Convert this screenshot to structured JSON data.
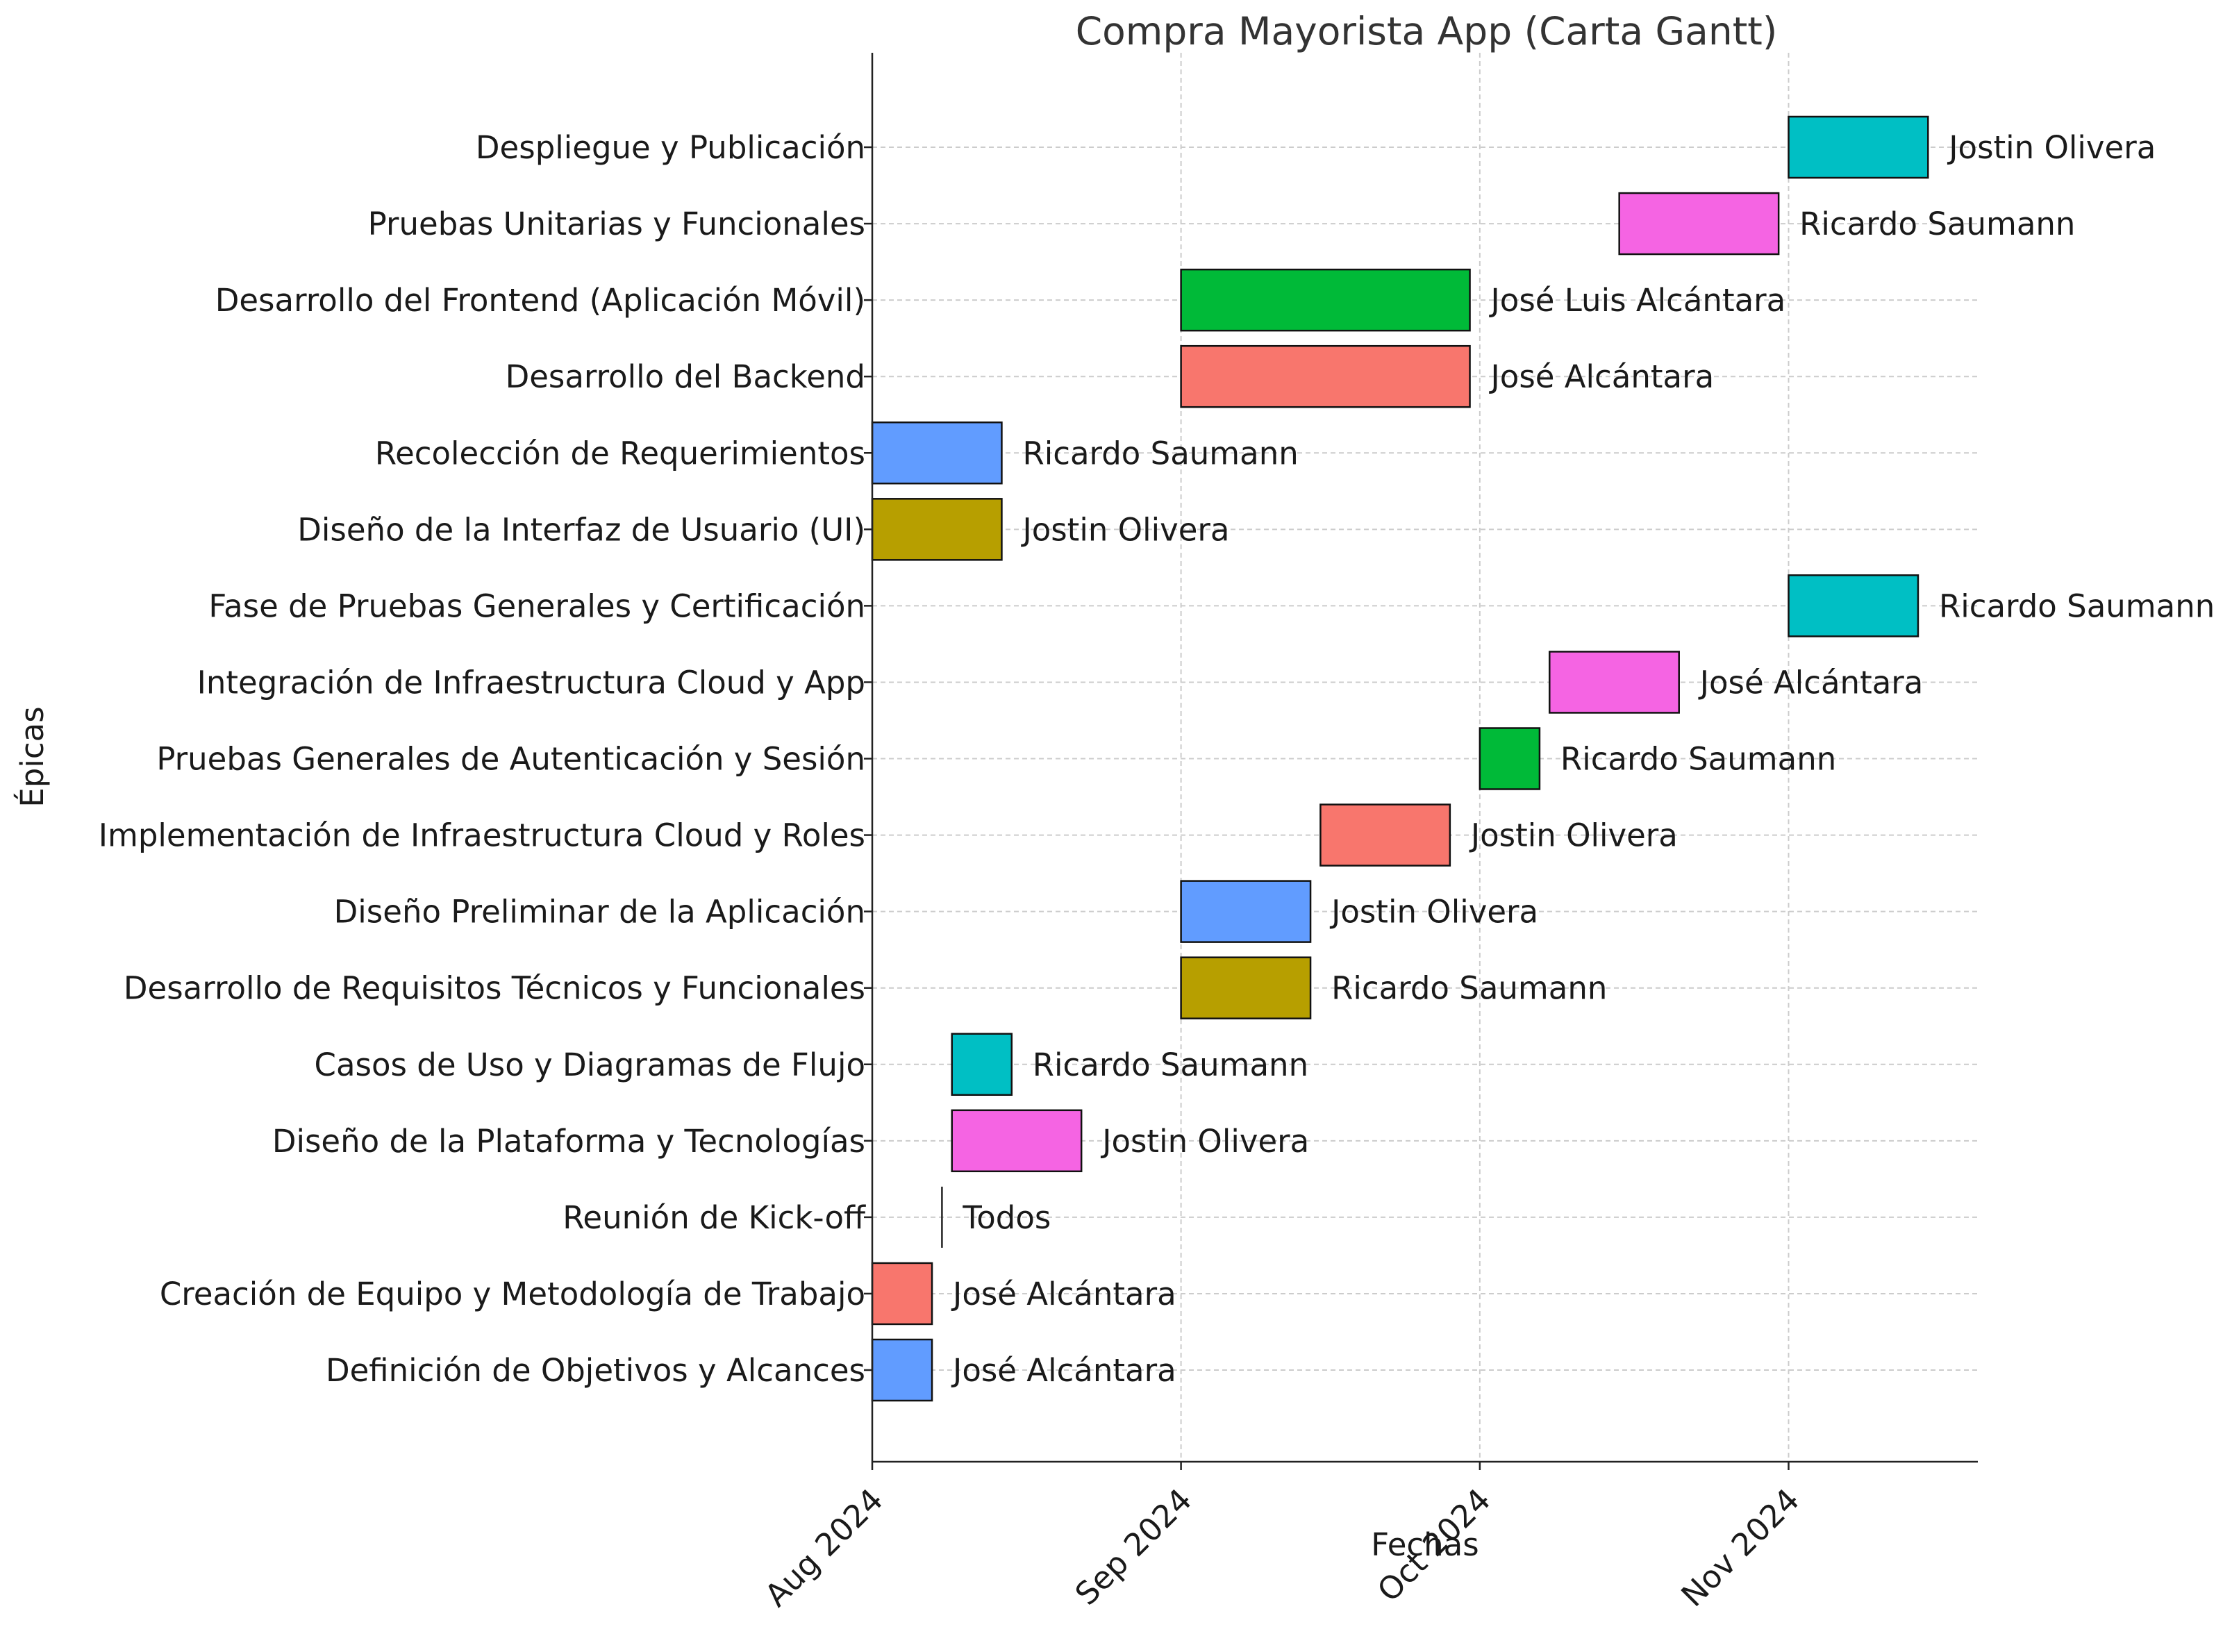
{
  "chart_data": {
    "type": "gantt",
    "title": "Compra Mayorista App (Carta Gantt)",
    "xlabel": "Fechas",
    "ylabel": "Épicas",
    "xlim": [
      "2024-08-01",
      "2024-11-20"
    ],
    "x_ticks": [
      {
        "date": "2024-08-01",
        "label": "Aug 2024"
      },
      {
        "date": "2024-09-01",
        "label": "Sep 2024"
      },
      {
        "date": "2024-10-01",
        "label": "Oct 2024"
      },
      {
        "date": "2024-11-01",
        "label": "Nov 2024"
      }
    ],
    "grid": true,
    "tasks": [
      {
        "name": "Definición de Objetivos y Alcances",
        "start": "2024-08-01",
        "end": "2024-08-07",
        "owner": "José Alcántara",
        "color": "#619CFF"
      },
      {
        "name": "Creación de Equipo y Metodología de Trabajo",
        "start": "2024-08-01",
        "end": "2024-08-07",
        "owner": "José Alcántara",
        "color": "#F8766D"
      },
      {
        "name": "Reunión de Kick-off",
        "start": "2024-08-08",
        "end": "2024-08-08",
        "owner": "Todos",
        "color": "#00BA38"
      },
      {
        "name": "Diseño de la Plataforma y Tecnologías",
        "start": "2024-08-09",
        "end": "2024-08-22",
        "owner": "Jostin Olivera",
        "color": "#F564E3"
      },
      {
        "name": "Casos de Uso y Diagramas de Flujo",
        "start": "2024-08-09",
        "end": "2024-08-15",
        "owner": "Ricardo Saumann",
        "color": "#00BFC4"
      },
      {
        "name": "Desarrollo de Requisitos Técnicos y Funcionales",
        "start": "2024-09-01",
        "end": "2024-09-14",
        "owner": "Ricardo Saumann",
        "color": "#B79F00"
      },
      {
        "name": "Diseño Preliminar de la Aplicación",
        "start": "2024-09-01",
        "end": "2024-09-14",
        "owner": "Jostin Olivera",
        "color": "#619CFF"
      },
      {
        "name": "Implementación de Infraestructura Cloud y Roles",
        "start": "2024-09-15",
        "end": "2024-09-28",
        "owner": "Jostin Olivera",
        "color": "#F8766D"
      },
      {
        "name": "Pruebas Generales de Autenticación y Sesión",
        "start": "2024-10-01",
        "end": "2024-10-07",
        "owner": "Ricardo Saumann",
        "color": "#00BA38"
      },
      {
        "name": "Integración de Infraestructura Cloud y App",
        "start": "2024-10-08",
        "end": "2024-10-21",
        "owner": "José Alcántara",
        "color": "#F564E3"
      },
      {
        "name": "Fase de Pruebas Generales y Certificación",
        "start": "2024-11-01",
        "end": "2024-11-14",
        "owner": "Ricardo Saumann",
        "color": "#00BFC4"
      },
      {
        "name": "Diseño de la Interfaz de Usuario (UI)",
        "start": "2024-08-01",
        "end": "2024-08-14",
        "owner": "Jostin Olivera",
        "color": "#B79F00"
      },
      {
        "name": "Recolección de Requerimientos",
        "start": "2024-08-01",
        "end": "2024-08-14",
        "owner": "Ricardo Saumann",
        "color": "#619CFF"
      },
      {
        "name": "Desarrollo del Backend",
        "start": "2024-09-01",
        "end": "2024-09-30",
        "owner": "José Alcántara",
        "color": "#F8766D"
      },
      {
        "name": "Desarrollo del Frontend (Aplicación Móvil)",
        "start": "2024-09-01",
        "end": "2024-09-30",
        "owner": "José Luis Alcántara",
        "color": "#00BA38"
      },
      {
        "name": "Pruebas Unitarias y Funcionales",
        "start": "2024-10-15",
        "end": "2024-10-31",
        "owner": "Ricardo Saumann",
        "color": "#F564E3"
      },
      {
        "name": "Despliegue y Publicación",
        "start": "2024-11-01",
        "end": "2024-11-15",
        "owner": "Jostin Olivera",
        "color": "#00BFC4"
      }
    ]
  }
}
